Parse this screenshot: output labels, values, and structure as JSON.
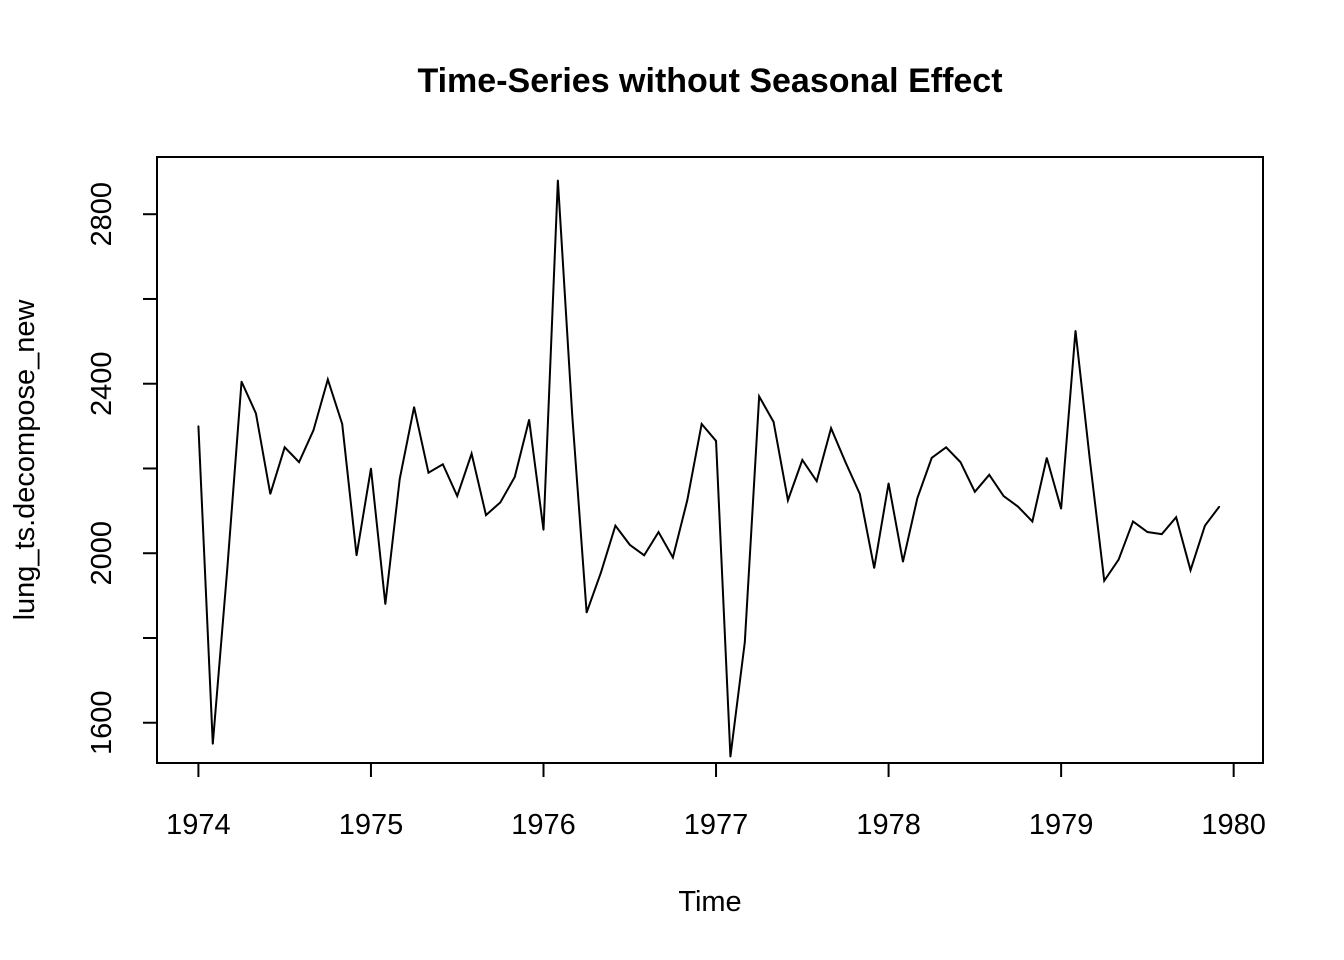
{
  "chart_data": {
    "type": "line",
    "title": "Time-Series without Seasonal Effect",
    "xlabel": "Time",
    "ylabel": "lung_ts.decompose_new",
    "xlim": [
      1973.76,
      1980.17
    ],
    "ylim": [
      1505,
      2935
    ],
    "x_ticks": [
      1974,
      1975,
      1976,
      1977,
      1978,
      1979,
      1980
    ],
    "x_tick_labels": [
      "1974",
      "1975",
      "1976",
      "1977",
      "1978",
      "1979",
      "1980"
    ],
    "y_ticks": [
      1600,
      1800,
      2000,
      2200,
      2400,
      2600,
      2800
    ],
    "y_tick_labels": [
      "1600",
      "",
      "2000",
      "",
      "2400",
      "",
      "2800"
    ],
    "grid": false,
    "legend": "none",
    "series": [
      {
        "start": 1974,
        "frequency": 12,
        "values": [
          2300,
          1550,
          1960,
          2405,
          2330,
          2140,
          2250,
          2215,
          2290,
          2410,
          2305,
          1995,
          2200,
          1880,
          2175,
          2345,
          2190,
          2210,
          2135,
          2235,
          2090,
          2120,
          2180,
          2315,
          2055,
          2880,
          2325,
          1860,
          1955,
          2065,
          2020,
          1995,
          2050,
          1990,
          2125,
          2305,
          2265,
          1520,
          1790,
          2370,
          2310,
          2125,
          2220,
          2170,
          2295,
          2215,
          2140,
          1965,
          2165,
          1980,
          2130,
          2225,
          2250,
          2215,
          2145,
          2185,
          2135,
          2110,
          2075,
          2225,
          2105,
          2525,
          2220,
          1935,
          1985,
          2075,
          2050,
          2045,
          2085,
          1960,
          2065,
          2110
        ],
        "color": "#000000"
      }
    ]
  }
}
